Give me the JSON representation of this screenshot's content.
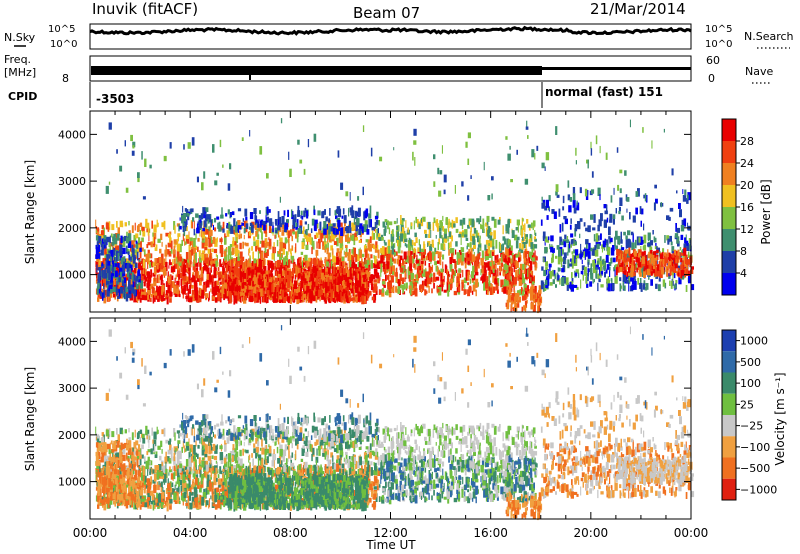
{
  "header": {
    "radar": "Inuvik (fitACF)",
    "beam": "Beam 07",
    "date": "21/Mar/2014"
  },
  "summary": {
    "left_nsky": "N.Sky",
    "right_nsearch": "N.Search",
    "noise_ticks": [
      "10^5",
      "10^0"
    ],
    "freq_label": "Freq.",
    "freq_unit": "[MHz]",
    "freq_ticks": [
      "8"
    ],
    "nave_label": "Nave",
    "nave_ticks": [
      "60",
      "0"
    ],
    "cpid_label": "CPID",
    "cpid_left": "-3503",
    "cpid_right": "normal (fast) 151"
  },
  "colors": {
    "power_scale": [
      "#0000ee",
      "#1f3fa8",
      "#3f8f6f",
      "#7fc040",
      "#f0c020",
      "#f08020",
      "#f04010",
      "#e80000"
    ],
    "velocity_scale": [
      "#1c3fb0",
      "#2f6aa8",
      "#3a8a6a",
      "#6fbf40",
      "#c8c8c8",
      "#f0a040",
      "#f07020",
      "#e02010"
    ]
  },
  "chart_data": [
    {
      "type": "heatmap",
      "title": "Power",
      "xlabel": "",
      "ylabel": "Slant Range [km]",
      "x_ticks": [
        "00:00",
        "04:00",
        "08:00",
        "12:00",
        "16:00",
        "20:00",
        "00:00"
      ],
      "y_ticks": [
        "1000",
        "2000",
        "3000",
        "4000"
      ],
      "ylim": [
        200,
        4500
      ],
      "colorbar_label": "Power [dB]",
      "colorbar_ticks": [
        "4",
        "8",
        "12",
        "16",
        "20",
        "24",
        "28"
      ],
      "colorbar_range": [
        0,
        32
      ]
    },
    {
      "type": "heatmap",
      "title": "Velocity",
      "xlabel": "Time UT",
      "ylabel": "Slant Range [km]",
      "x_ticks": [
        "00:00",
        "04:00",
        "08:00",
        "12:00",
        "16:00",
        "20:00",
        "00:00"
      ],
      "y_ticks": [
        "1000",
        "2000",
        "3000",
        "4000"
      ],
      "ylim": [
        200,
        4500
      ],
      "colorbar_label": "Velocity [m s⁻¹]",
      "colorbar_ticks": [
        "1000",
        "500",
        "100",
        "25",
        "−25",
        "−100",
        "−500",
        "−1000"
      ]
    }
  ]
}
